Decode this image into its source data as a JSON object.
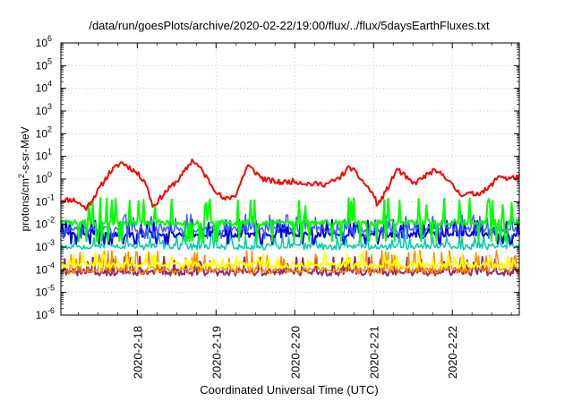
{
  "chart_data": {
    "type": "line",
    "title": "/data/run/goesPlots/archive/2020-02-22/19:00/flux/../flux/5daysEarthFluxes.txt",
    "xlabel": "Coordinated Universal Time (UTC)",
    "ylabel_parts": [
      "protons/cm",
      "2",
      "-s-sr-MeV"
    ],
    "y_scale": "log",
    "ylim_exp": [
      -6,
      6
    ],
    "xlim_day": [
      17.03,
      22.85
    ],
    "y_ticks": [
      {
        "base": "10",
        "exp": "-6"
      },
      {
        "base": "10",
        "exp": "-5"
      },
      {
        "base": "10",
        "exp": "-4"
      },
      {
        "base": "10",
        "exp": "-3"
      },
      {
        "base": "10",
        "exp": "-2"
      },
      {
        "base": "10",
        "exp": "-1"
      },
      {
        "base": "10",
        "exp": "0"
      },
      {
        "base": "10",
        "exp": "1"
      },
      {
        "base": "10",
        "exp": "2"
      },
      {
        "base": "10",
        "exp": "3"
      },
      {
        "base": "10",
        "exp": "4"
      },
      {
        "base": "10",
        "exp": "5"
      },
      {
        "base": "10",
        "exp": "6"
      }
    ],
    "x_ticks": [
      {
        "day": 18,
        "label": "2020-2-18"
      },
      {
        "day": 19,
        "label": "2020-2-19"
      },
      {
        "day": 20,
        "label": "2020-2-20"
      },
      {
        "day": 21,
        "label": "2020-2-21"
      },
      {
        "day": 22,
        "label": "2020-2-22"
      }
    ],
    "grid": true,
    "series": [
      {
        "color": "#ff0000",
        "width": 2,
        "mode": "smooth",
        "noise": 0.12,
        "seed": 11,
        "points": [
          [
            17.03,
            0.12
          ],
          [
            17.2,
            0.12
          ],
          [
            17.35,
            0.05
          ],
          [
            17.5,
            0.3
          ],
          [
            17.65,
            2.0
          ],
          [
            17.8,
            5.5
          ],
          [
            17.95,
            2.5
          ],
          [
            18.1,
            0.8
          ],
          [
            18.2,
            0.06
          ],
          [
            18.35,
            0.25
          ],
          [
            18.55,
            1.2
          ],
          [
            18.7,
            7.0
          ],
          [
            18.8,
            3.0
          ],
          [
            18.95,
            0.5
          ],
          [
            19.1,
            0.12
          ],
          [
            19.25,
            0.2
          ],
          [
            19.4,
            4.0
          ],
          [
            19.6,
            1.0
          ],
          [
            19.8,
            0.7
          ],
          [
            20.0,
            0.8
          ],
          [
            20.2,
            0.6
          ],
          [
            20.4,
            0.6
          ],
          [
            20.55,
            1.0
          ],
          [
            20.7,
            3.5
          ],
          [
            20.85,
            0.9
          ],
          [
            21.0,
            0.2
          ],
          [
            21.05,
            0.07
          ],
          [
            21.15,
            0.25
          ],
          [
            21.3,
            2.8
          ],
          [
            21.5,
            0.6
          ],
          [
            21.75,
            2.2
          ],
          [
            21.9,
            1.5
          ],
          [
            22.0,
            0.5
          ],
          [
            22.1,
            0.22
          ],
          [
            22.3,
            0.22
          ],
          [
            22.45,
            0.35
          ],
          [
            22.6,
            1.5
          ],
          [
            22.7,
            1.0
          ],
          [
            22.85,
            1.3
          ]
        ]
      },
      {
        "color": "#00ff00",
        "width": 2,
        "mode": "spiky",
        "base": 0.012,
        "spike_factor": 10,
        "dip_factor": 0.15,
        "seed": 23
      },
      {
        "color": "#4060ff",
        "width": 1.5,
        "mode": "spiky",
        "base": 0.006,
        "spike_factor": 4,
        "dip_factor": 0.4,
        "seed": 37
      },
      {
        "color": "#0000e0",
        "width": 2,
        "mode": "spiky",
        "base": 0.0035,
        "spike_factor": 4,
        "dip_factor": 0.4,
        "seed": 41
      },
      {
        "color": "#00ccaa",
        "width": 1.5,
        "mode": "spiky",
        "base": 0.0011,
        "spike_factor": 3,
        "dip_factor": 0.7,
        "seed": 53
      },
      {
        "color": "#ffff00",
        "width": 2,
        "mode": "spiky",
        "base": 0.00016,
        "spike_factor": 3,
        "dip_factor": 0.8,
        "seed": 61
      },
      {
        "color": "#ff8800",
        "width": 1.5,
        "mode": "spiky",
        "base": 0.0001,
        "spike_factor": 6,
        "dip_factor": 0.7,
        "seed": 67
      },
      {
        "color": "#8b2d6e",
        "width": 2,
        "mode": "spiky",
        "base": 8e-05,
        "spike_factor": 4,
        "dip_factor": 0.7,
        "seed": 71
      }
    ]
  }
}
